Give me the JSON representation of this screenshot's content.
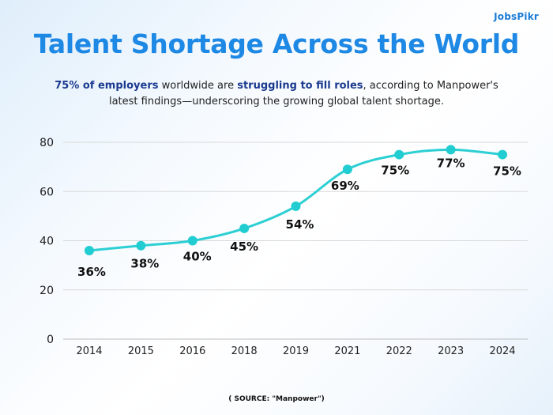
{
  "brand": {
    "logo_text": "JobsPikr"
  },
  "header": {
    "title": "Talent Shortage Across the World",
    "subtitle_parts": [
      "75% of employers",
      " worldwide are ",
      "struggling to fill roles",
      ", according to Manpower's latest findings—underscoring the growing global talent shortage."
    ]
  },
  "footer": {
    "source": "( SOURCE: \"Manpower\")"
  },
  "colors": {
    "title": "#1e88e5",
    "line": "#2ccfd3",
    "point": "#22cdd2",
    "grid": "#d9d9d9",
    "emphasis": "#1a3a8f"
  },
  "chart_data": {
    "type": "line",
    "title": "Talent Shortage Across the World",
    "categories": [
      "2014",
      "2015",
      "2016",
      "2018",
      "2019",
      "2021",
      "2022",
      "2023",
      "2024"
    ],
    "values": [
      36,
      38,
      40,
      45,
      54,
      69,
      75,
      77,
      75
    ],
    "data_labels": [
      "36%",
      "38%",
      "40%",
      "45%",
      "54%",
      "69%",
      "75%",
      "77%",
      "75%"
    ],
    "y_ticks": [
      0,
      20,
      40,
      60,
      80
    ],
    "ylim": [
      0,
      80
    ],
    "xlabel": "",
    "ylabel": "",
    "grid": true,
    "legend": "none"
  }
}
